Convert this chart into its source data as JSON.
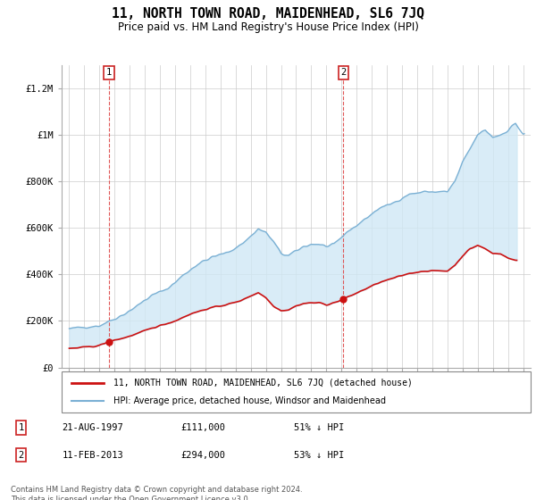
{
  "title": "11, NORTH TOWN ROAD, MAIDENHEAD, SL6 7JQ",
  "subtitle": "Price paid vs. HM Land Registry's House Price Index (HPI)",
  "title_fontsize": 10.5,
  "subtitle_fontsize": 8.5,
  "hpi_color": "#7ab0d4",
  "hpi_fill_color": "#d0e8f5",
  "price_color": "#cc1111",
  "vline_color": "#dd4444",
  "annotation_box_color": "#cc2222",
  "ylim": [
    0,
    1300000
  ],
  "yticks": [
    0,
    200000,
    400000,
    600000,
    800000,
    1000000,
    1200000
  ],
  "ytick_labels": [
    "£0",
    "£200K",
    "£400K",
    "£600K",
    "£800K",
    "£1M",
    "£1.2M"
  ],
  "purchase1": {
    "date": "21-AUG-1997",
    "price": 111000,
    "pct": "51%",
    "x_year": 1997.64
  },
  "purchase2": {
    "date": "11-FEB-2013",
    "price": 294000,
    "pct": "53%",
    "x_year": 2013.12
  },
  "legend_line1": "11, NORTH TOWN ROAD, MAIDENHEAD, SL6 7JQ (detached house)",
  "legend_line2": "HPI: Average price, detached house, Windsor and Maidenhead",
  "footnote": "Contains HM Land Registry data © Crown copyright and database right 2024.\nThis data is licensed under the Open Government Licence v3.0.",
  "xlim": [
    1994.5,
    2025.5
  ],
  "hpi_years": [
    1995,
    1995.5,
    1996,
    1996.5,
    1997,
    1997.5,
    1998,
    1998.5,
    1999,
    1999.5,
    2000,
    2000.5,
    2001,
    2001.5,
    2002,
    2002.5,
    2003,
    2003.5,
    2004,
    2004.5,
    2005,
    2005.5,
    2006,
    2006.5,
    2007,
    2007.5,
    2008,
    2008.5,
    2009,
    2009.5,
    2010,
    2010.5,
    2011,
    2011.5,
    2012,
    2012.5,
    2013,
    2013.5,
    2014,
    2014.5,
    2015,
    2015.5,
    2016,
    2016.5,
    2017,
    2017.5,
    2018,
    2018.5,
    2019,
    2019.5,
    2020,
    2020.5,
    2021,
    2021.5,
    2022,
    2022.5,
    2023,
    2023.5,
    2024,
    2024.5,
    2025
  ],
  "hpi_vals": [
    165000,
    170000,
    175000,
    177000,
    180000,
    195000,
    210000,
    225000,
    245000,
    265000,
    290000,
    310000,
    325000,
    340000,
    365000,
    395000,
    420000,
    445000,
    460000,
    475000,
    485000,
    495000,
    515000,
    535000,
    565000,
    595000,
    580000,
    540000,
    490000,
    480000,
    500000,
    520000,
    530000,
    530000,
    520000,
    525000,
    560000,
    590000,
    610000,
    635000,
    660000,
    685000,
    695000,
    710000,
    730000,
    745000,
    750000,
    755000,
    755000,
    755000,
    755000,
    800000,
    880000,
    940000,
    1000000,
    1020000,
    990000,
    1000000,
    1020000,
    1050000,
    1000000
  ],
  "price_years": [
    1995,
    1995.5,
    1996,
    1996.5,
    1997,
    1997.64,
    1998,
    1998.5,
    1999,
    1999.5,
    2000,
    2000.5,
    2001,
    2001.5,
    2002,
    2002.5,
    2003,
    2003.5,
    2004,
    2004.5,
    2005,
    2005.5,
    2006,
    2006.5,
    2007,
    2007.5,
    2008,
    2008.5,
    2009,
    2009.5,
    2010,
    2010.5,
    2011,
    2011.5,
    2012,
    2012.5,
    2013,
    2013.12,
    2013.5,
    2014,
    2014.5,
    2015,
    2015.5,
    2016,
    2016.5,
    2017,
    2017.5,
    2018,
    2018.5,
    2019,
    2019.5,
    2020,
    2020.5,
    2021,
    2021.5,
    2022,
    2022.5,
    2023,
    2023.5,
    2024,
    2024.5
  ],
  "price_vals": [
    82000,
    84000,
    87000,
    90000,
    95000,
    111000,
    118000,
    125000,
    135000,
    145000,
    158000,
    170000,
    180000,
    190000,
    200000,
    215000,
    230000,
    240000,
    250000,
    258000,
    265000,
    272000,
    280000,
    292000,
    308000,
    322000,
    300000,
    265000,
    245000,
    248000,
    265000,
    275000,
    278000,
    278000,
    270000,
    278000,
    290000,
    294000,
    305000,
    320000,
    335000,
    350000,
    365000,
    375000,
    385000,
    395000,
    405000,
    410000,
    415000,
    415000,
    415000,
    415000,
    440000,
    480000,
    510000,
    525000,
    510000,
    490000,
    490000,
    470000,
    460000
  ]
}
